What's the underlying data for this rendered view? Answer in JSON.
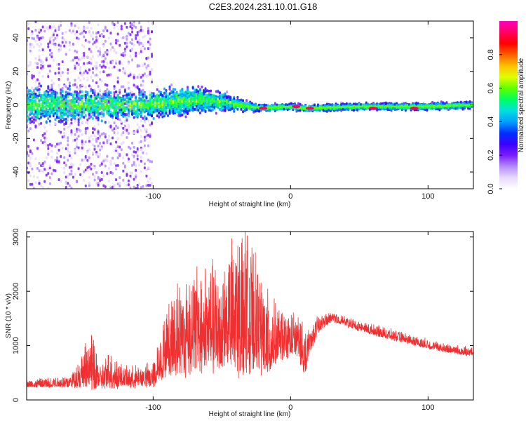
{
  "title": "C2E3.2024.231.10.01.G18",
  "chart_data": [
    {
      "type": "heatmap",
      "title": "",
      "xlabel": "Height of straight line (km)",
      "ylabel": "Frequency (Hz)",
      "xlim": [
        -192,
        133
      ],
      "ylim": [
        -50,
        50
      ],
      "xticks": [
        -100,
        0,
        100
      ],
      "yticks": [
        -40,
        -20,
        0,
        20,
        40
      ],
      "colorbar": {
        "label": "Normalized spectral amplitude",
        "range": [
          0,
          1
        ],
        "ticks": [
          0.0,
          0.2,
          0.4,
          0.6,
          0.8
        ],
        "colormap": [
          "#ffffff",
          "#e8d8ff",
          "#b48cff",
          "#7b1cff",
          "#3a00ff",
          "#0030ff",
          "#00a0ff",
          "#00e0e0",
          "#00ff60",
          "#60ff00",
          "#e0ff00",
          "#ffc000",
          "#ff6000",
          "#ff0000",
          "#ff0060",
          "#ff00c0"
        ]
      },
      "ridge": [
        {
          "x": -190,
          "center": 0,
          "spread": 8
        },
        {
          "x": -150,
          "center": 0,
          "spread": 7
        },
        {
          "x": -100,
          "center": 0,
          "spread": 6
        },
        {
          "x": -70,
          "center": 3,
          "spread": 6
        },
        {
          "x": -50,
          "center": 2,
          "spread": 4
        },
        {
          "x": -30,
          "center": -1,
          "spread": 2
        },
        {
          "x": -20,
          "center": -2,
          "spread": 1.5
        },
        {
          "x": 0,
          "center": -1,
          "spread": 1.5
        },
        {
          "x": 10,
          "center": -2,
          "spread": 1.5
        },
        {
          "x": 50,
          "center": -1,
          "spread": 1.5
        },
        {
          "x": 100,
          "center": -1,
          "spread": 1.5
        },
        {
          "x": 133,
          "center": 0,
          "spread": 1.5
        }
      ],
      "hotspots": [
        {
          "x": -20,
          "y": -2
        },
        {
          "x": 4,
          "y": -1
        },
        {
          "x": 14,
          "y": -2
        },
        {
          "x": 60,
          "y": -2
        },
        {
          "x": 90,
          "y": -2
        }
      ]
    },
    {
      "type": "line",
      "title": "",
      "xlabel": "Height of straight line (km)",
      "ylabel": "SNR (10 * v/v)",
      "xlim": [
        -192,
        133
      ],
      "ylim": [
        0,
        3100
      ],
      "xticks": [
        -100,
        0,
        100
      ],
      "yticks": [
        0,
        1000,
        2000,
        3000
      ],
      "color": "#f03030",
      "envelope": [
        {
          "x": -192,
          "base": 250,
          "amp": 100
        },
        {
          "x": -160,
          "base": 280,
          "amp": 150
        },
        {
          "x": -145,
          "base": 400,
          "amp": 700
        },
        {
          "x": -138,
          "base": 300,
          "amp": 250
        },
        {
          "x": -132,
          "base": 330,
          "amp": 500
        },
        {
          "x": -120,
          "base": 300,
          "amp": 250
        },
        {
          "x": -100,
          "base": 330,
          "amp": 300
        },
        {
          "x": -95,
          "base": 500,
          "amp": 600
        },
        {
          "x": -85,
          "base": 800,
          "amp": 1100
        },
        {
          "x": -70,
          "base": 900,
          "amp": 1300
        },
        {
          "x": -50,
          "base": 1000,
          "amp": 1300
        },
        {
          "x": -35,
          "base": 1000,
          "amp": 1900
        },
        {
          "x": -28,
          "base": 900,
          "amp": 1500
        },
        {
          "x": -15,
          "base": 800,
          "amp": 900
        },
        {
          "x": -5,
          "base": 900,
          "amp": 600
        },
        {
          "x": 5,
          "base": 1000,
          "amp": 500
        },
        {
          "x": 10,
          "base": 600,
          "amp": 600
        },
        {
          "x": 20,
          "base": 1300,
          "amp": 200
        },
        {
          "x": 30,
          "base": 1480,
          "amp": 120
        },
        {
          "x": 50,
          "base": 1300,
          "amp": 130
        },
        {
          "x": 80,
          "base": 1100,
          "amp": 130
        },
        {
          "x": 110,
          "base": 920,
          "amp": 110
        },
        {
          "x": 133,
          "base": 830,
          "amp": 110
        }
      ]
    }
  ]
}
